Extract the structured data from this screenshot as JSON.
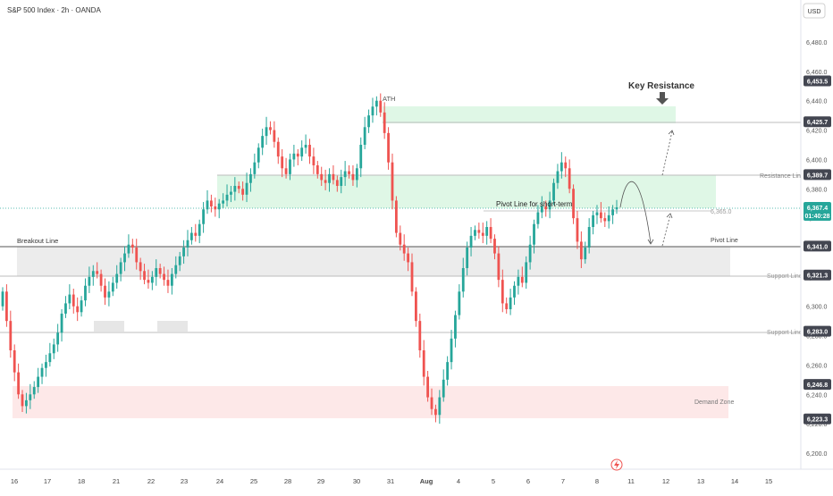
{
  "header": {
    "symbol_title": "S&P 500 Index · 2h · OANDA",
    "currency": "USD"
  },
  "colors": {
    "up": "#26a69a",
    "down": "#ef5350",
    "green_zone": "#dff7e6",
    "grey_zone": "#ececec",
    "red_zone": "#fde8e8",
    "price_tag": "#434651",
    "current_tag": "#26a69a"
  },
  "annotations": {
    "key_resistance": "Key Resistance",
    "ath": "ATH",
    "breakout_line": "Breakout Line",
    "pivot_short": "Pivot Line for short-term",
    "pivot_value": "6,365.0",
    "resistance_line": "Resistance Line",
    "pivot_line": "Pivot Line",
    "support_line_1": "Support Line",
    "support_line_2": "Support Line",
    "demand_zone": "Demand Zone"
  },
  "price_tags": {
    "t6453": "6,453.5",
    "t6425": "6,425.7",
    "t6389": "6,389.7",
    "t6367": "6,367.4",
    "t6367_time": "01:40:28",
    "t6341": "6,341.0",
    "t6321": "6,321.3",
    "t6283": "6,283.0",
    "t6246": "6,246.8",
    "t6223": "6,223.3"
  },
  "chart_data": {
    "type": "candlestick",
    "title": "S&P 500 Index · 2h · OANDA",
    "ylim": [
      6190,
      6500
    ],
    "y_ticks": [
      "6,480.0",
      "6,460.0",
      "6,440.0",
      "6,420.0",
      "6,400.0",
      "6,380.0",
      "6,360.0",
      "6,340.0",
      "6,320.0",
      "6,300.0",
      "6,280.0",
      "6,260.0",
      "6,240.0",
      "6,220.0",
      "6,200.0"
    ],
    "x_ticks": [
      "16",
      "17",
      "18",
      "21",
      "22",
      "23",
      "24",
      "25",
      "28",
      "29",
      "30",
      "31",
      "Aug",
      "4",
      "5",
      "6",
      "7",
      "8",
      "11",
      "12",
      "13",
      "14",
      "15"
    ],
    "levels": {
      "key_resistance_zone": [
        6425.7,
        6435
      ],
      "resistance_zone": [
        6367.4,
        6389.7
      ],
      "pivot_short_term": 6365.0,
      "breakout_pivot": 6341.0,
      "support_zone": [
        6321.3,
        6341.0
      ],
      "support_1": 6321.3,
      "support_2": 6283.0,
      "demand_zone": [
        6223.3,
        6246.8
      ],
      "last_price": 6367.4
    },
    "closes": [
      6310,
      6290,
      6270,
      6255,
      6240,
      6232,
      6236,
      6240,
      6245,
      6252,
      6258,
      6262,
      6268,
      6274,
      6282,
      6295,
      6302,
      6308,
      6300,
      6296,
      6304,
      6314,
      6320,
      6324,
      6322,
      6314,
      6306,
      6310,
      6316,
      6322,
      6330,
      6336,
      6342,
      6340,
      6330,
      6324,
      6318,
      6316,
      6320,
      6326,
      6322,
      6318,
      6314,
      6322,
      6328,
      6334,
      6340,
      6345,
      6350,
      6348,
      6356,
      6366,
      6372,
      6368,
      6366,
      6370,
      6372,
      6376,
      6378,
      6382,
      6380,
      6376,
      6384,
      6390,
      6398,
      6408,
      6416,
      6422,
      6420,
      6412,
      6402,
      6394,
      6390,
      6400,
      6404,
      6402,
      6408,
      6410,
      6402,
      6396,
      6390,
      6386,
      6384,
      6390,
      6386,
      6382,
      6388,
      6392,
      6390,
      6386,
      6394,
      6410,
      6422,
      6430,
      6436,
      6440,
      6432,
      6418,
      6398,
      6372,
      6350,
      6342,
      6336,
      6330,
      6310,
      6290,
      6270,
      6252,
      6238,
      6230,
      6226,
      6238,
      6250,
      6262,
      6278,
      6294,
      6310,
      6326,
      6340,
      6348,
      6352,
      6350,
      6348,
      6354,
      6346,
      6336,
      6318,
      6302,
      6298,
      6306,
      6314,
      6320,
      6316,
      6330,
      6342,
      6356,
      6364,
      6368,
      6366,
      6372,
      6384,
      6392,
      6398,
      6394,
      6380,
      6360,
      6344,
      6332,
      6340,
      6354,
      6362,
      6364,
      6360,
      6358,
      6362,
      6366,
      6367.4
    ]
  }
}
